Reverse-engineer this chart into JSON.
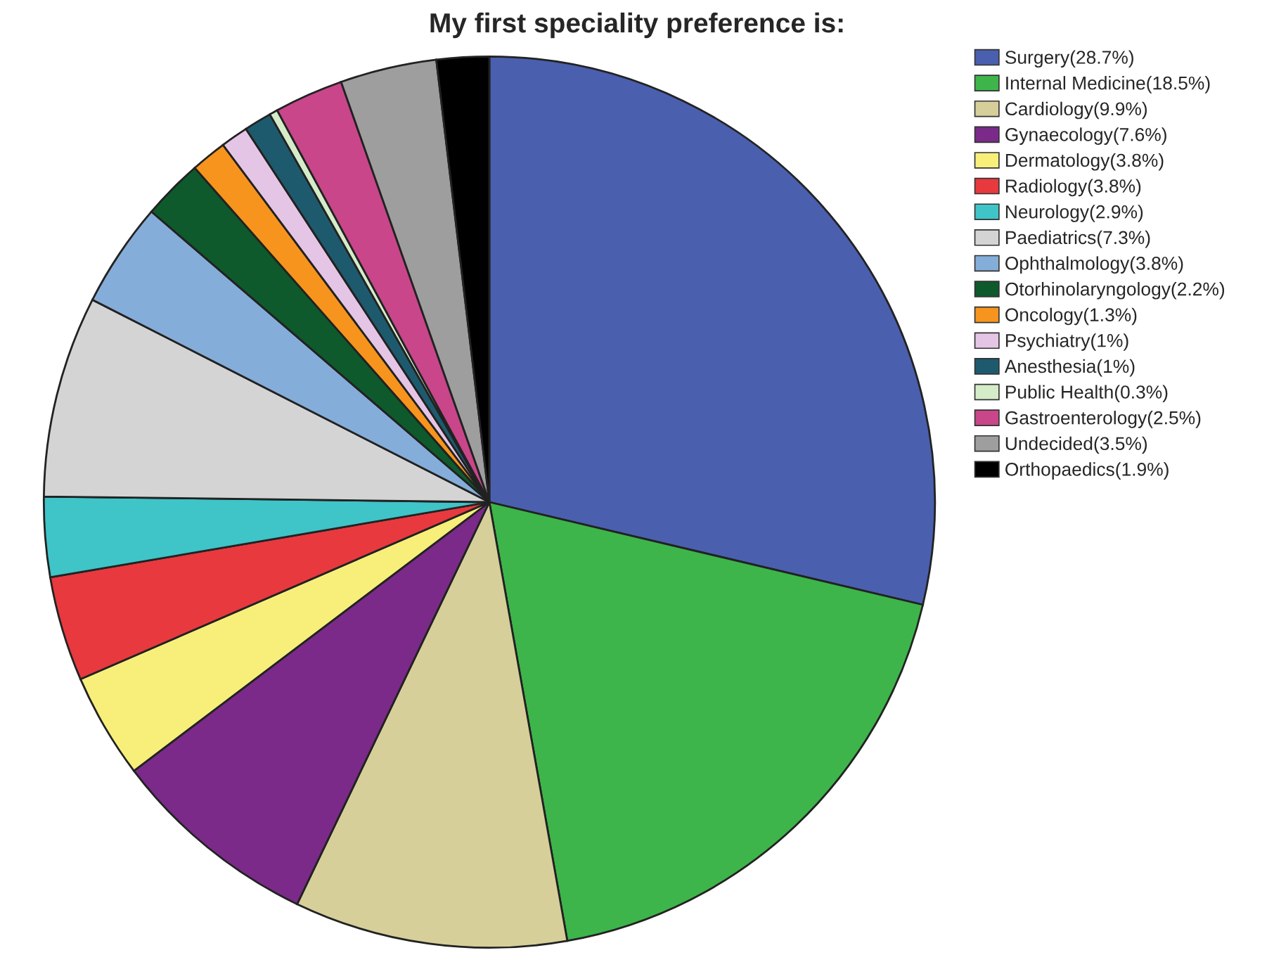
{
  "chart_data": {
    "type": "pie",
    "title": "My first speciality preference is:",
    "categories": [
      "Surgery(28.7%)",
      "Internal Medicine(18.5%)",
      "Cardiology(9.9%)",
      "Gynaecology(7.6%)",
      "Dermatology(3.8%)",
      "Radiology(3.8%)",
      "Neurology(2.9%)",
      "Paediatrics(7.3%)",
      "Ophthalmology(3.8%)",
      "Otorhinolaryngology(2.2%)",
      "Oncology(1.3%)",
      "Psychiatry(1%)",
      "Anesthesia(1%)",
      "Public Health(0.3%)",
      "Gastroenterology(2.5%)",
      "Undecided(3.5%)",
      "Orthopaedics(1.9%)"
    ],
    "values": [
      28.7,
      18.5,
      9.9,
      7.6,
      3.8,
      3.8,
      2.9,
      7.3,
      3.8,
      2.2,
      1.3,
      1,
      1,
      0.3,
      2.5,
      3.5,
      1.9
    ],
    "colors": [
      "#4a5fae",
      "#3db54a",
      "#d6cf9a",
      "#7b2a8a",
      "#f7ef7a",
      "#e8393f",
      "#3fc4c8",
      "#d4d4d4",
      "#85add9",
      "#0e5a2c",
      "#f7941d",
      "#e5c5e5",
      "#1e5a6e",
      "#d5ecc9",
      "#c9468a",
      "#9e9e9e",
      "#000000"
    ],
    "legend": "top right"
  }
}
